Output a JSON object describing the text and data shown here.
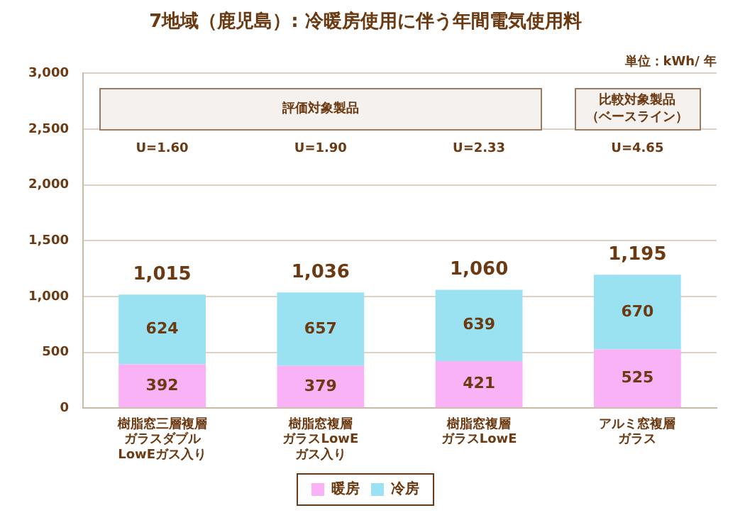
{
  "chart_data": {
    "type": "bar",
    "title": "7地域（鹿児島）: 冷暖房使用に伴う年間電気使用料",
    "categories": [
      "樹脂窓三層複層ガラスダブル LowEガス入り",
      "樹脂窓複層ガラスLowEガス入り",
      "樹脂窓複層ガラスLowE",
      "アルミ窓複層ガラス"
    ],
    "series": [
      {
        "name": "暖房",
        "color": "#f9b2f5",
        "values": [
          392,
          379,
          421,
          525
        ]
      },
      {
        "name": "冷房",
        "color": "#9ae2f2",
        "values": [
          624,
          657,
          639,
          670
        ]
      }
    ],
    "stacked": true,
    "data_labels": true,
    "totals": [
      "1,015",
      "1,036",
      "1,060",
      "1,195"
    ],
    "ylim": [
      0,
      3000
    ],
    "yticks": [
      0,
      {
        "value": 500,
        "label": "500"
      },
      {
        "value": 1000,
        "label": "1,000"
      },
      {
        "value": 1500,
        "label": "1,500"
      },
      {
        "value": 2000,
        "label": "2,000"
      },
      {
        "value": 2500,
        "label": "2,500"
      },
      {
        "value": 3000,
        "label": "3,000"
      }
    ],
    "grid": "y",
    "legend": "bottom",
    "annotations": [
      "単位：kWh/ 年",
      "評価対象製品",
      "比較対象製品（ベースライン）",
      "U=1.60",
      "U=1.90",
      "U=2.33",
      "U=4.65"
    ]
  }
}
